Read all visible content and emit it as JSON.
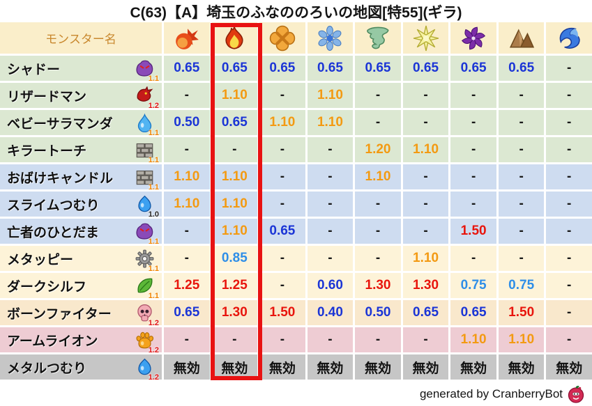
{
  "title": "C(63)【A】埼玉のふなののろいの地図[特55](ギラ)",
  "header": {
    "monster_col_label": "モンスター名",
    "element_columns": [
      {
        "icon": "fireball",
        "highlighted": false
      },
      {
        "icon": "flame",
        "highlighted": true
      },
      {
        "icon": "burst",
        "highlighted": false
      },
      {
        "icon": "snowflake",
        "highlighted": false
      },
      {
        "icon": "tornado",
        "highlighted": false
      },
      {
        "icon": "spark",
        "highlighted": false
      },
      {
        "icon": "dark-pinwheel",
        "highlighted": false
      },
      {
        "icon": "mountain",
        "highlighted": false
      },
      {
        "icon": "wave",
        "highlighted": false
      }
    ]
  },
  "rows": [
    {
      "name": "シャドー",
      "family_icon": "demon",
      "badge": "1.1",
      "badge_color": "orange",
      "bg": "green",
      "cells": [
        {
          "t": "0.65",
          "c": "blue"
        },
        {
          "t": "0.65",
          "c": "blue"
        },
        {
          "t": "0.65",
          "c": "blue"
        },
        {
          "t": "0.65",
          "c": "blue"
        },
        {
          "t": "0.65",
          "c": "blue"
        },
        {
          "t": "0.65",
          "c": "blue"
        },
        {
          "t": "0.65",
          "c": "blue"
        },
        {
          "t": "0.65",
          "c": "blue"
        },
        {
          "t": "-",
          "c": "dash"
        }
      ]
    },
    {
      "name": "リザードマン",
      "family_icon": "dragon",
      "badge": "1.2",
      "badge_color": "red",
      "bg": "green",
      "cells": [
        {
          "t": "-",
          "c": "dash"
        },
        {
          "t": "1.10",
          "c": "orange"
        },
        {
          "t": "-",
          "c": "dash"
        },
        {
          "t": "1.10",
          "c": "orange"
        },
        {
          "t": "-",
          "c": "dash"
        },
        {
          "t": "-",
          "c": "dash"
        },
        {
          "t": "-",
          "c": "dash"
        },
        {
          "t": "-",
          "c": "dash"
        },
        {
          "t": "-",
          "c": "dash"
        }
      ]
    },
    {
      "name": "ベビーサラマンダ",
      "family_icon": "waterdrop",
      "badge": "1.1",
      "badge_color": "orange",
      "bg": "green",
      "cells": [
        {
          "t": "0.50",
          "c": "blue"
        },
        {
          "t": "0.65",
          "c": "blue"
        },
        {
          "t": "1.10",
          "c": "orange"
        },
        {
          "t": "1.10",
          "c": "orange"
        },
        {
          "t": "-",
          "c": "dash"
        },
        {
          "t": "-",
          "c": "dash"
        },
        {
          "t": "-",
          "c": "dash"
        },
        {
          "t": "-",
          "c": "dash"
        },
        {
          "t": "-",
          "c": "dash"
        }
      ]
    },
    {
      "name": "キラートーチ",
      "family_icon": "brick",
      "badge": "1.1",
      "badge_color": "orange",
      "bg": "green",
      "cells": [
        {
          "t": "-",
          "c": "dash"
        },
        {
          "t": "-",
          "c": "dash"
        },
        {
          "t": "-",
          "c": "dash"
        },
        {
          "t": "-",
          "c": "dash"
        },
        {
          "t": "1.20",
          "c": "orange"
        },
        {
          "t": "1.10",
          "c": "orange"
        },
        {
          "t": "-",
          "c": "dash"
        },
        {
          "t": "-",
          "c": "dash"
        },
        {
          "t": "-",
          "c": "dash"
        }
      ]
    },
    {
      "name": "おばけキャンドル",
      "family_icon": "brick",
      "badge": "1.1",
      "badge_color": "orange",
      "bg": "blue",
      "cells": [
        {
          "t": "1.10",
          "c": "orange"
        },
        {
          "t": "1.10",
          "c": "orange"
        },
        {
          "t": "-",
          "c": "dash"
        },
        {
          "t": "-",
          "c": "dash"
        },
        {
          "t": "1.10",
          "c": "orange"
        },
        {
          "t": "-",
          "c": "dash"
        },
        {
          "t": "-",
          "c": "dash"
        },
        {
          "t": "-",
          "c": "dash"
        },
        {
          "t": "-",
          "c": "dash"
        }
      ]
    },
    {
      "name": "スライムつむり",
      "family_icon": "slime",
      "badge": "1.0",
      "badge_color": "black",
      "bg": "blue",
      "cells": [
        {
          "t": "1.10",
          "c": "orange"
        },
        {
          "t": "1.10",
          "c": "orange"
        },
        {
          "t": "-",
          "c": "dash"
        },
        {
          "t": "-",
          "c": "dash"
        },
        {
          "t": "-",
          "c": "dash"
        },
        {
          "t": "-",
          "c": "dash"
        },
        {
          "t": "-",
          "c": "dash"
        },
        {
          "t": "-",
          "c": "dash"
        },
        {
          "t": "-",
          "c": "dash"
        }
      ]
    },
    {
      "name": "亡者のひとだま",
      "family_icon": "demon",
      "badge": "1.1",
      "badge_color": "orange",
      "bg": "blue",
      "cells": [
        {
          "t": "-",
          "c": "dash"
        },
        {
          "t": "1.10",
          "c": "orange"
        },
        {
          "t": "0.65",
          "c": "blue"
        },
        {
          "t": "-",
          "c": "dash"
        },
        {
          "t": "-",
          "c": "dash"
        },
        {
          "t": "-",
          "c": "dash"
        },
        {
          "t": "1.50",
          "c": "red"
        },
        {
          "t": "-",
          "c": "dash"
        },
        {
          "t": "-",
          "c": "dash"
        }
      ]
    },
    {
      "name": "メタッピー",
      "family_icon": "gear",
      "badge": "1.1",
      "badge_color": "orange",
      "bg": "cream",
      "cells": [
        {
          "t": "-",
          "c": "dash"
        },
        {
          "t": "0.85",
          "c": "lightblue"
        },
        {
          "t": "-",
          "c": "dash"
        },
        {
          "t": "-",
          "c": "dash"
        },
        {
          "t": "-",
          "c": "dash"
        },
        {
          "t": "1.10",
          "c": "orange"
        },
        {
          "t": "-",
          "c": "dash"
        },
        {
          "t": "-",
          "c": "dash"
        },
        {
          "t": "-",
          "c": "dash"
        }
      ]
    },
    {
      "name": "ダークシルフ",
      "family_icon": "leaf",
      "badge": "1.1",
      "badge_color": "orange",
      "bg": "cream",
      "cells": [
        {
          "t": "1.25",
          "c": "red"
        },
        {
          "t": "1.25",
          "c": "red"
        },
        {
          "t": "-",
          "c": "dash"
        },
        {
          "t": "0.60",
          "c": "blue"
        },
        {
          "t": "1.30",
          "c": "red"
        },
        {
          "t": "1.30",
          "c": "red"
        },
        {
          "t": "0.75",
          "c": "lightblue"
        },
        {
          "t": "0.75",
          "c": "lightblue"
        },
        {
          "t": "-",
          "c": "dash"
        }
      ]
    },
    {
      "name": "ボーンファイター",
      "family_icon": "skull",
      "badge": "1.2",
      "badge_color": "red",
      "bg": "tan",
      "cells": [
        {
          "t": "0.65",
          "c": "blue"
        },
        {
          "t": "1.30",
          "c": "red"
        },
        {
          "t": "1.50",
          "c": "red"
        },
        {
          "t": "0.40",
          "c": "blue"
        },
        {
          "t": "0.50",
          "c": "blue"
        },
        {
          "t": "0.65",
          "c": "blue"
        },
        {
          "t": "0.65",
          "c": "blue"
        },
        {
          "t": "1.50",
          "c": "red"
        },
        {
          "t": "-",
          "c": "dash"
        }
      ]
    },
    {
      "name": "アームライオン",
      "family_icon": "paw",
      "badge": "1.2",
      "badge_color": "red",
      "bg": "pink",
      "cells": [
        {
          "t": "-",
          "c": "dash"
        },
        {
          "t": "-",
          "c": "dash"
        },
        {
          "t": "-",
          "c": "dash"
        },
        {
          "t": "-",
          "c": "dash"
        },
        {
          "t": "-",
          "c": "dash"
        },
        {
          "t": "-",
          "c": "dash"
        },
        {
          "t": "1.10",
          "c": "orange"
        },
        {
          "t": "1.10",
          "c": "orange"
        },
        {
          "t": "-",
          "c": "dash"
        }
      ]
    },
    {
      "name": "メタルつむり",
      "family_icon": "slime",
      "badge": "1.2",
      "badge_color": "red",
      "bg": "gray",
      "cells": [
        {
          "t": "無効",
          "c": "black"
        },
        {
          "t": "無効",
          "c": "black"
        },
        {
          "t": "無効",
          "c": "black"
        },
        {
          "t": "無効",
          "c": "black"
        },
        {
          "t": "無効",
          "c": "black"
        },
        {
          "t": "無効",
          "c": "black"
        },
        {
          "t": "無効",
          "c": "black"
        },
        {
          "t": "無効",
          "c": "black"
        },
        {
          "t": "無効",
          "c": "black"
        }
      ]
    }
  ],
  "footer": {
    "text": "generated by CranberryBot",
    "icon": "cranberry"
  },
  "colors": {
    "highlight_box": "#e81212",
    "header_bg": "#faeeca",
    "header_text": "#c9882e",
    "value_blue": "#1b35d6",
    "value_lightblue": "#2e8ee8",
    "value_orange": "#f39a12",
    "value_red": "#e8150d",
    "value_dash": "#1a1a1a",
    "value_black": "#111111",
    "badge_orange": "#f08300",
    "badge_red": "#e01212",
    "badge_black": "#222222",
    "row_green": "#dce8d2",
    "row_blue": "#cedcf0",
    "row_cream": "#fdf3d8",
    "row_tan": "#f9e8cc",
    "row_pink": "#eeccd3",
    "row_gray": "#c6c6c6"
  }
}
